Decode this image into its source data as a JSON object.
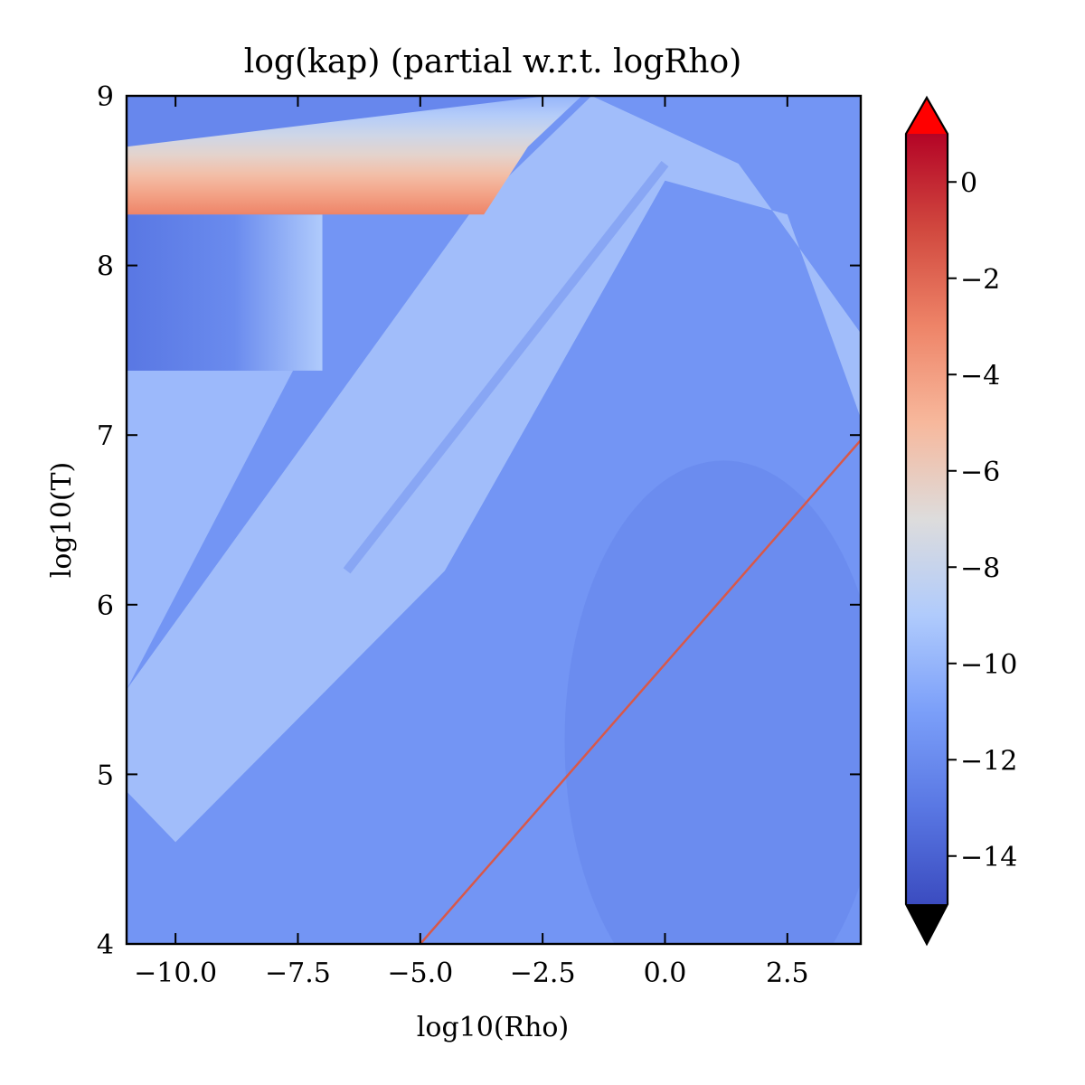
{
  "chart_data": {
    "type": "heatmap",
    "title": "log(kap) (partial w.r.t. logRho)",
    "xlabel": "log10(Rho)",
    "ylabel": "log10(T)",
    "xlim": [
      -11.0,
      4.0
    ],
    "ylim": [
      4.0,
      9.0
    ],
    "x_ticks": [
      -10.0,
      -7.5,
      -5.0,
      -2.5,
      0.0,
      2.5
    ],
    "x_tick_labels": [
      "−10.0",
      "−7.5",
      "−5.0",
      "−2.5",
      "0.0",
      "2.5"
    ],
    "y_ticks": [
      4,
      5,
      6,
      7,
      8,
      9
    ],
    "y_tick_labels": [
      "4",
      "5",
      "6",
      "7",
      "8",
      "9"
    ],
    "colorbar": {
      "vmin": -15,
      "vmax": 1,
      "extend": "both",
      "over_color": "#ff0000",
      "under_color": "#000000",
      "ticks": [
        0,
        -2,
        -4,
        -6,
        -8,
        -10,
        -12,
        -14
      ],
      "tick_labels": [
        "0",
        "−2",
        "−4",
        "−6",
        "−8",
        "−10",
        "−12",
        "−14"
      ]
    },
    "colormap": "coolwarm",
    "colormap_stops": [
      {
        "value": -15,
        "color": "#3b4cc0"
      },
      {
        "value": -13,
        "color": "#5977e3"
      },
      {
        "value": -11,
        "color": "#7b9ff9"
      },
      {
        "value": -9,
        "color": "#b0cbfc"
      },
      {
        "value": -7,
        "color": "#dddcdc"
      },
      {
        "value": -5,
        "color": "#f7b89c"
      },
      {
        "value": -3,
        "color": "#ee8468"
      },
      {
        "value": -1,
        "color": "#d1493f"
      },
      {
        "value": 1,
        "color": "#b40426"
      }
    ],
    "regions": [
      {
        "name": "background",
        "value": -11.5
      },
      {
        "name": "lower-right-dome",
        "value": -12.3
      },
      {
        "name": "left-wedge",
        "value": -9.5
      },
      {
        "name": "diagonal-band",
        "value": -9.0
      },
      {
        "name": "upper-left-block",
        "value": -13.0,
        "xrange": [
          -11.0,
          -7.0
        ],
        "yrange": [
          7.38,
          8.3
        ]
      },
      {
        "name": "top-gradient-band",
        "value_range": [
          -10.0,
          -3.0
        ],
        "yrange": [
          8.3,
          9.0
        ]
      }
    ],
    "features": [
      {
        "name": "red-diagonal-line",
        "value": -1.5,
        "from": [
          -5.0,
          4.0
        ],
        "to": [
          4.0,
          6.97
        ]
      }
    ]
  }
}
